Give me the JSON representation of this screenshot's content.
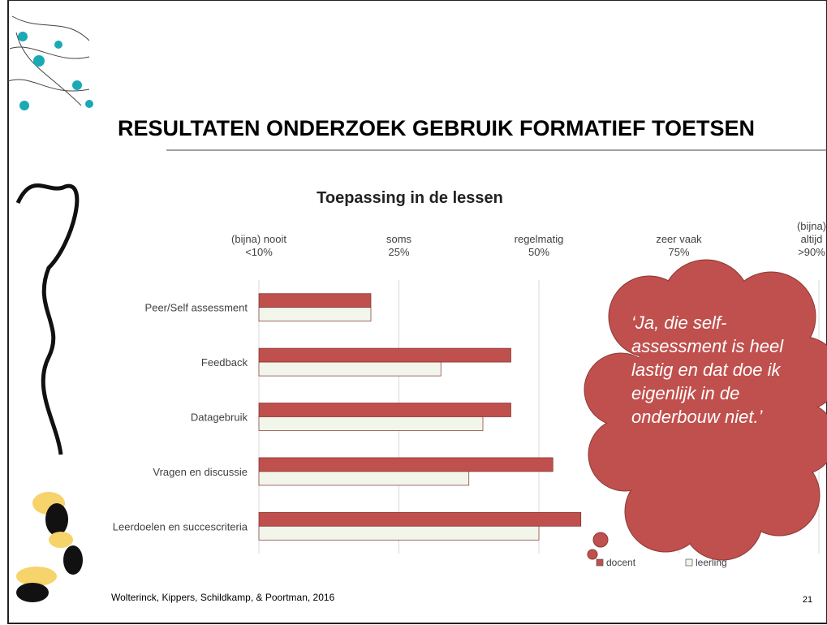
{
  "slide": {
    "title": "RESULTATEN ONDERZOEK GEBRUIK FORMATIEF TOETSEN",
    "citation": "Wolterinck, Kippers, Schildkamp, & Poortman, 2016",
    "page_number": 21,
    "callout": "‘Ja, die self-assessment is heel lastig en dat doe ik eigenlijk in de onderbouw niet.’"
  },
  "chart_data": {
    "type": "hbar",
    "title": "Toepassing in de lessen",
    "categories": [
      "Peer/Self assessment",
      "Feedback",
      "Datagebruik",
      "Vragen en discussie",
      "Leerdoelen en succescriteria"
    ],
    "series": [
      {
        "name": "docent",
        "color": "#c0504d",
        "values": [
          1.8,
          2.8,
          2.8,
          3.1,
          3.3
        ]
      },
      {
        "name": "leerling",
        "color": "#f2f5ea",
        "values": [
          1.8,
          2.3,
          2.6,
          2.5,
          3.0
        ]
      }
    ],
    "xlim": [
      1,
      5
    ],
    "xticks": [
      {
        "value": 1,
        "label": "(bijna) nooit\n<10%"
      },
      {
        "value": 2,
        "label": "soms\n25%"
      },
      {
        "value": 3,
        "label": "regelmatig\n50%"
      },
      {
        "value": 4,
        "label": "zeer vaak\n75%"
      },
      {
        "value": 5,
        "label": "(bijna)\naltijd\n>90%"
      }
    ],
    "grid": true,
    "legend": "bottom-right"
  }
}
